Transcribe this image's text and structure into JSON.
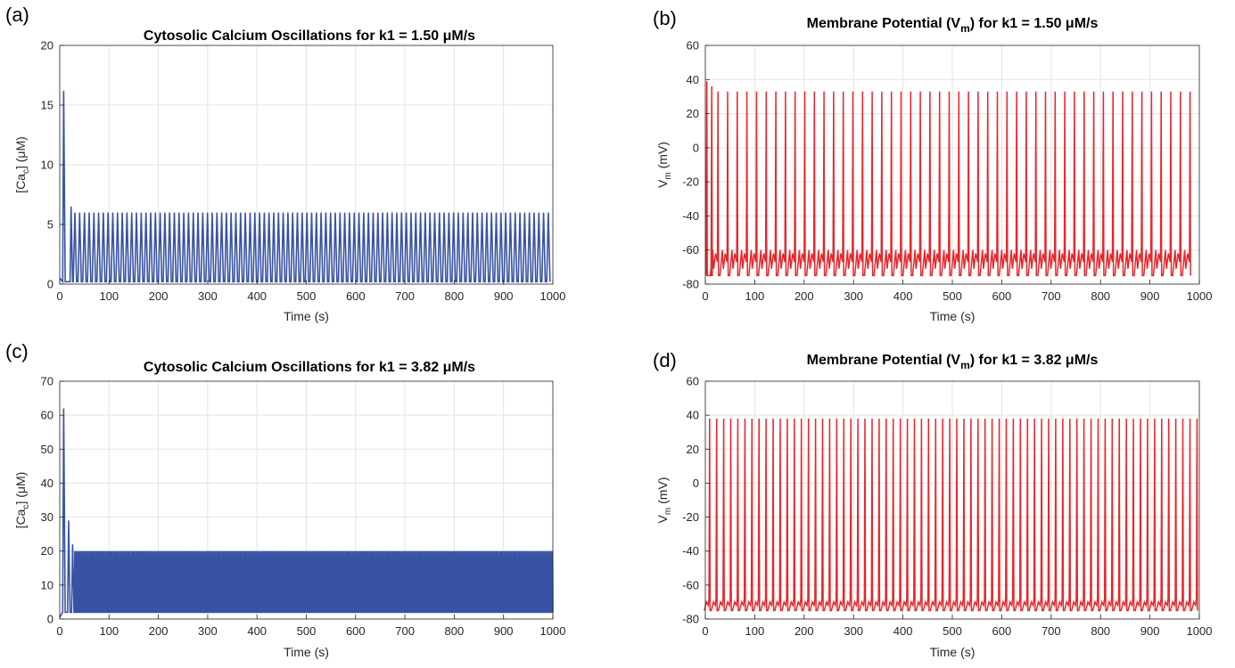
{
  "chart_data": [
    {
      "panel": "(a)",
      "type": "line",
      "title": "Cytosolic Calcium Oscillations for k1 = 1.50 μM/s",
      "xlabel": "Time (s)",
      "ylabel": "[Cac] (μM)",
      "ylabel_parts": {
        "main": "[Ca",
        "sub": "c",
        "rest": "] (μM)"
      },
      "xlim": [
        0,
        1000
      ],
      "ylim": [
        0,
        20
      ],
      "xticks": [
        0,
        100,
        200,
        300,
        400,
        500,
        600,
        700,
        800,
        900,
        1000
      ],
      "yticks": [
        0,
        5,
        10,
        15,
        20
      ],
      "grid": true,
      "color": "#3953a4",
      "series": [
        {
          "baseline": 0.3,
          "initial_peaks": [
            {
              "t": 8,
              "value": 16.2
            },
            {
              "t": 23,
              "value": 6.5
            }
          ],
          "period_s": 9.6,
          "peak": 6.0,
          "trough": 0.2,
          "t_end": 1000
        }
      ]
    },
    {
      "panel": "(b)",
      "type": "line",
      "title": "Membrane Potential (Vm) for k1 = 1.50 μM/s",
      "title_parts": {
        "pre": "Membrane Potential (V",
        "sub": "m",
        "post": ") for k1 = 1.50 μM/s"
      },
      "xlabel": "Time (s)",
      "ylabel": "Vm (mV)",
      "ylabel_parts": {
        "main": "V",
        "sub": "m",
        "rest": " (mV)"
      },
      "xlim": [
        0,
        1000
      ],
      "ylim": [
        -80,
        60
      ],
      "xticks": [
        0,
        100,
        200,
        300,
        400,
        500,
        600,
        700,
        800,
        900,
        1000
      ],
      "yticks": [
        -80,
        -60,
        -40,
        -20,
        0,
        20,
        40,
        60
      ],
      "grid": true,
      "color": "#e8262a",
      "series": [
        {
          "initial_peaks": [
            {
              "t": 3,
              "value": 39
            },
            {
              "t": 13,
              "value": 36
            }
          ],
          "period_s": 19.5,
          "spike_peak": 33,
          "reset": -75,
          "secondary_bump": -60,
          "t_end": 1000
        }
      ]
    },
    {
      "panel": "(c)",
      "type": "line",
      "title": "Cytosolic Calcium Oscillations for k1 = 3.82 μM/s",
      "xlabel": "Time (s)",
      "ylabel": "[Cac] (μM)",
      "ylabel_parts": {
        "main": "[Ca",
        "sub": "c",
        "rest": "] (μM)"
      },
      "xlim": [
        0,
        1000
      ],
      "ylim": [
        0,
        70
      ],
      "xticks": [
        0,
        100,
        200,
        300,
        400,
        500,
        600,
        700,
        800,
        900,
        1000
      ],
      "yticks": [
        0,
        10,
        20,
        30,
        40,
        50,
        60,
        70
      ],
      "grid": true,
      "color": "#3953a4",
      "series": [
        {
          "initial_peaks": [
            {
              "t": 8,
              "value": 62
            },
            {
              "t": 18,
              "value": 29
            },
            {
              "t": 26,
              "value": 22
            }
          ],
          "period_s": 3.0,
          "peak": 20,
          "trough": 2,
          "t_end": 1000
        }
      ]
    },
    {
      "panel": "(d)",
      "type": "line",
      "title": "Membrane Potential (Vm) for k1 = 3.82 μM/s",
      "title_parts": {
        "pre": "Membrane Potential (V",
        "sub": "m",
        "post": ") for k1 = 3.82 μM/s"
      },
      "xlabel": "Time (s)",
      "ylabel": "Vm (mV)",
      "ylabel_parts": {
        "main": "V",
        "sub": "m",
        "rest": " (mV)"
      },
      "xlim": [
        0,
        1000
      ],
      "ylim": [
        -80,
        60
      ],
      "xticks": [
        0,
        100,
        200,
        300,
        400,
        500,
        600,
        700,
        800,
        900,
        1000
      ],
      "yticks": [
        -80,
        -60,
        -40,
        -20,
        0,
        20,
        40,
        60
      ],
      "grid": true,
      "color": "#e8262a",
      "series": [
        {
          "period_s": 14.3,
          "spike_peak": 38,
          "reset": -75,
          "trough_band": -70,
          "t_end": 1000
        }
      ]
    }
  ]
}
